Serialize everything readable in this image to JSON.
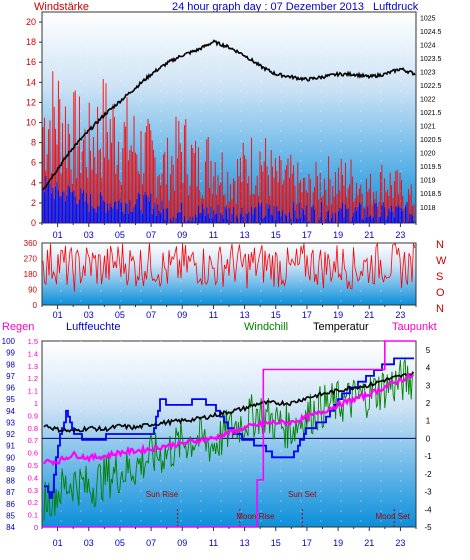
{
  "header": {
    "left_label": "Windstärke",
    "title": "24 hour graph day : 07 Dezember 2013",
    "right_label": "Luftdruck"
  },
  "colors": {
    "wind": "#ff0000",
    "gust_blue": "#0000ff",
    "pressure": "#000000",
    "direction": "#ff0000",
    "humidity": "#0000ff",
    "windchill": "#008000",
    "temperature": "#000000",
    "dewpoint": "#ff00ff",
    "rain": "#ff00ff",
    "panel_top": "#dce9f7",
    "panel_bottom": "#0a8fdc",
    "label_red": "#cc0000",
    "label_blue": "#0000cc",
    "label_magenta": "#ff00cc",
    "label_green": "#008000"
  },
  "x_ticks": [
    "01",
    "03",
    "05",
    "07",
    "09",
    "11",
    "13",
    "15",
    "17",
    "19",
    "21",
    "23"
  ],
  "chart_data": [
    {
      "type": "line",
      "title": "24 hour graph day : 07 Dezember 2013",
      "ylabel_left": "Windstärke",
      "ylabel_right": "Luftdruck",
      "x_range_hours": [
        0,
        24
      ],
      "ylim_left": [
        0,
        21
      ],
      "ylim_right": [
        1017.4,
        1025.2
      ],
      "left_ticks": [
        "0",
        "2",
        "4",
        "6",
        "8",
        "10",
        "12",
        "14",
        "16",
        "18",
        "20"
      ],
      "right_ticks": [
        "1018",
        "1018.5",
        "1019",
        "1019.5",
        "1020",
        "1020.5",
        "1021",
        "1021.5",
        "1022",
        "1022.5",
        "1023",
        "1023.5",
        "1024",
        "1024.5",
        "1025"
      ],
      "series": [
        {
          "name": "Luftdruck",
          "axis": "right",
          "x": [
            0,
            0.5,
            1,
            1.5,
            2,
            3,
            4,
            5,
            6,
            7,
            8,
            9,
            10,
            11,
            12,
            13,
            14,
            15,
            16,
            17,
            18,
            19,
            20,
            21,
            22,
            23,
            23.5,
            24
          ],
          "y": [
            1018.6,
            1019.0,
            1019.4,
            1019.8,
            1020.2,
            1020.8,
            1021.4,
            1021.9,
            1022.4,
            1022.9,
            1023.3,
            1023.6,
            1023.8,
            1024.1,
            1023.9,
            1023.6,
            1023.2,
            1022.9,
            1022.8,
            1022.7,
            1022.8,
            1022.9,
            1022.9,
            1022.8,
            1022.9,
            1023.1,
            1023.0,
            1022.9
          ]
        },
        {
          "name": "Windstärke",
          "axis": "left",
          "x": [
            0,
            1,
            2,
            3,
            4,
            5,
            6,
            7,
            8,
            9,
            10,
            11,
            12,
            13,
            14,
            15,
            16,
            17,
            18,
            19,
            20,
            21,
            22,
            23,
            24
          ],
          "y": [
            9,
            10,
            8,
            7,
            9,
            8,
            7,
            6,
            5,
            7,
            5,
            6,
            4,
            5,
            6,
            4,
            4,
            3,
            4,
            4,
            4,
            3,
            4,
            3,
            2
          ]
        },
        {
          "name": "Böen",
          "axis": "left",
          "x": [
            0,
            1,
            2,
            3,
            4,
            5,
            6,
            7,
            8,
            9,
            10,
            11,
            12,
            13,
            14,
            15,
            16,
            17,
            18,
            19,
            20,
            21,
            22,
            23,
            24
          ],
          "y": [
            4,
            3,
            3,
            2,
            2,
            2,
            2,
            2,
            1,
            1,
            1,
            1,
            1,
            1,
            1,
            1,
            1,
            1,
            1,
            1,
            1,
            1,
            1,
            1,
            1
          ]
        }
      ]
    },
    {
      "type": "scatter",
      "ylabel_right": [
        "N",
        "W",
        "S",
        "O",
        "N"
      ],
      "ylim": [
        0,
        360
      ],
      "left_ticks": [
        "0",
        "90",
        "180",
        "270",
        "360"
      ],
      "series": [
        {
          "name": "Windrichtung",
          "x": [
            0,
            1,
            2,
            3,
            4,
            5,
            6,
            7,
            8,
            9,
            10,
            11,
            12,
            13,
            14,
            15,
            16,
            17,
            18,
            19,
            20,
            21,
            22,
            23,
            24
          ],
          "y": [
            230,
            250,
            200,
            240,
            210,
            260,
            220,
            250,
            200,
            230,
            240,
            210,
            250,
            220,
            240,
            230,
            200,
            250,
            220,
            240,
            210,
            230,
            250,
            220,
            240
          ]
        }
      ]
    },
    {
      "type": "line",
      "legend": [
        "Regen",
        "Luftfeuchte",
        "Windchill",
        "Temperatur",
        "Taupunkt"
      ],
      "ylim_left_rain": [
        0,
        1.5
      ],
      "ylim_left_humidity": [
        84,
        100
      ],
      "ylim_right": [
        -5,
        5.5
      ],
      "rain_ticks": [
        "0",
        "0.1",
        "0.2",
        "0.3",
        "0.4",
        "0.5",
        "0.6",
        "0.7",
        "0.8",
        "0.9",
        "1",
        "1.1",
        "1.2",
        "1.3",
        "1.4",
        "1.5"
      ],
      "humidity_ticks": [
        "84",
        "85",
        "86",
        "87",
        "88",
        "89",
        "90",
        "91",
        "92",
        "93",
        "94",
        "95",
        "96",
        "97",
        "98",
        "99",
        "100"
      ],
      "right_ticks": [
        "-5",
        "-4",
        "-3",
        "-2",
        "-1",
        "0",
        "1",
        "2",
        "3",
        "4",
        "5"
      ],
      "annotations": [
        "Sun Rise",
        "Moon Rise",
        "Sun Set",
        "Moon Set"
      ],
      "series": [
        {
          "name": "Temperatur",
          "x": [
            0,
            1,
            2,
            3,
            4,
            5,
            6,
            7,
            8,
            9,
            10,
            11,
            12,
            13,
            14,
            15,
            16,
            17,
            18,
            19,
            20,
            21,
            22,
            23,
            24
          ],
          "y": [
            0.8,
            0.5,
            0.4,
            0.6,
            0.5,
            0.7,
            0.6,
            0.8,
            0.9,
            1.0,
            1.1,
            1.3,
            1.5,
            1.7,
            2.0,
            2.0,
            2.0,
            2.3,
            2.5,
            2.7,
            2.9,
            3.0,
            3.3,
            3.5,
            3.7
          ]
        },
        {
          "name": "Taupunkt",
          "x": [
            0,
            1,
            2,
            3,
            4,
            5,
            6,
            7,
            8,
            9,
            10,
            11,
            12,
            13,
            14,
            15,
            16,
            17,
            18,
            19,
            20,
            21,
            22,
            23,
            24
          ],
          "y": [
            -1.3,
            -1.3,
            -0.9,
            -1.1,
            -1.0,
            -0.8,
            -0.7,
            -0.6,
            -0.4,
            -0.3,
            -0.1,
            0.0,
            0.3,
            0.6,
            0.8,
            0.9,
            0.9,
            1.2,
            1.5,
            1.9,
            2.2,
            2.5,
            2.9,
            3.3,
            3.6
          ]
        },
        {
          "name": "Windchill",
          "x": [
            0,
            1,
            2,
            3,
            4,
            5,
            6,
            7,
            8,
            9,
            10,
            11,
            12,
            13,
            14,
            15,
            16,
            17,
            18,
            19,
            20,
            21,
            22,
            23,
            24
          ],
          "y": [
            -3.4,
            -3.0,
            -2.4,
            -2.8,
            -2.2,
            -1.9,
            -1.6,
            -1.0,
            -0.8,
            -0.2,
            0.0,
            -0.4,
            0.5,
            1.0,
            1.5,
            0.9,
            0.6,
            1.3,
            1.8,
            2.0,
            2.2,
            2.5,
            2.9,
            3.2,
            3.5
          ]
        },
        {
          "name": "Luftfeuchte",
          "x": [
            0,
            0.6,
            1.1,
            1.6,
            2.1,
            3,
            5,
            6,
            7.1,
            7.6,
            8.2,
            9,
            10,
            11,
            12,
            13,
            14,
            15,
            16,
            17,
            18,
            19,
            20,
            21,
            22,
            23,
            24
          ],
          "y": [
            88,
            86.5,
            92,
            94,
            92,
            91.5,
            92,
            92,
            92,
            95,
            94.5,
            94.5,
            95,
            94.5,
            92.5,
            91.5,
            91,
            90,
            90,
            92.5,
            93,
            95,
            96,
            97,
            98,
            98.5,
            98.5
          ]
        },
        {
          "name": "Regen",
          "x": [
            0,
            11.9,
            12.1,
            13.8,
            14.2,
            15,
            16,
            17,
            18,
            20,
            21.8,
            22,
            24
          ],
          "y": [
            0,
            0,
            0,
            0.38,
            1.27,
            1.27,
            1.27,
            1.27,
            1.27,
            1.27,
            1.27,
            1.5,
            1.5
          ]
        }
      ]
    }
  ]
}
